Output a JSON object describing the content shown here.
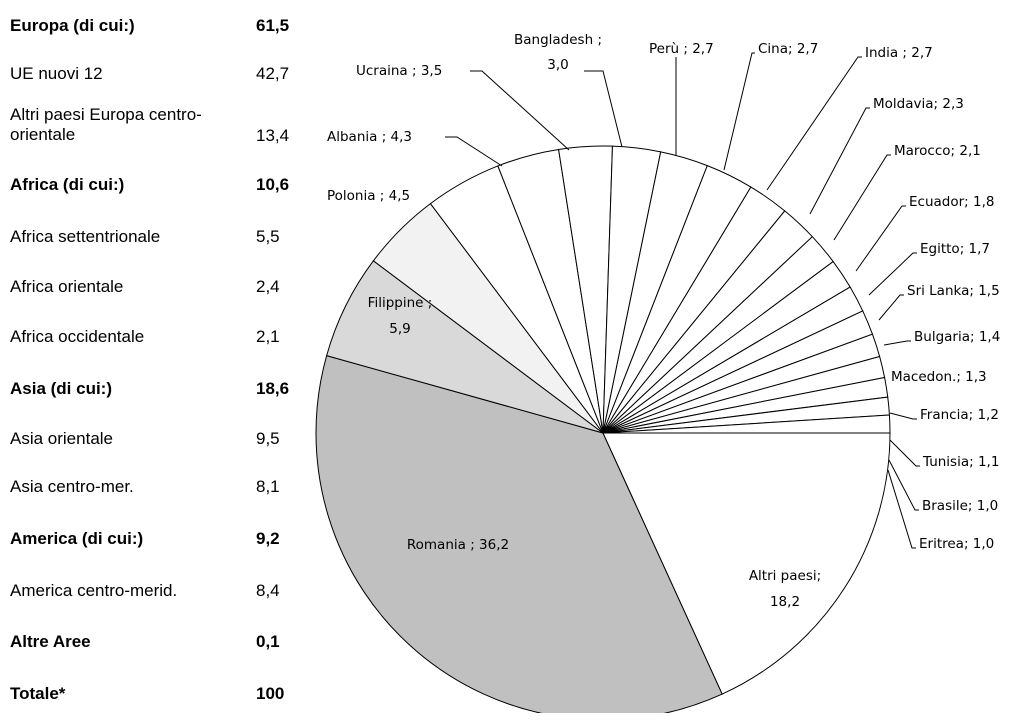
{
  "table": {
    "rows": [
      {
        "label": "Europa (di cui:)",
        "value": "61,5",
        "bold": true
      },
      {
        "label": "UE nuovi 12",
        "value": "42,7",
        "bold": false
      },
      {
        "label": "Altri paesi Europa centro-orientale",
        "value": "13,4",
        "bold": false
      },
      {
        "label": "Africa (di cui:)",
        "value": "10,6",
        "bold": true
      },
      {
        "label": "Africa settentrionale",
        "value": "5,5",
        "bold": false
      },
      {
        "label": "Africa orientale",
        "value": "2,4",
        "bold": false
      },
      {
        "label": "Africa occidentale",
        "value": "2,1",
        "bold": false
      },
      {
        "label": "Asia (di cui:)",
        "value": "18,6",
        "bold": true
      },
      {
        "label": "Asia orientale",
        "value": "9,5",
        "bold": false
      },
      {
        "label": "Asia centro-mer.",
        "value": "8,1",
        "bold": false
      },
      {
        "label": "America (di cui:)",
        "value": "9,2",
        "bold": true
      },
      {
        "label": "America centro-merid.",
        "value": "8,4",
        "bold": false
      },
      {
        "label": "Altre Aree",
        "value": "0,1",
        "bold": true
      },
      {
        "label": "Totale*",
        "value": "100",
        "bold": true
      }
    ]
  },
  "chart_data": {
    "type": "pie",
    "title": "",
    "slices": [
      {
        "name": "Romania",
        "value": 36.2,
        "label": "Romania ; 36,2",
        "color": "#c0c0c0"
      },
      {
        "name": "Filippine",
        "value": 5.9,
        "label": "Filippine ; 5,9",
        "color": "#d9d9d9"
      },
      {
        "name": "Polonia",
        "value": 4.5,
        "label": "Polonia ; 4,5",
        "color": "#f2f2f2"
      },
      {
        "name": "Albania",
        "value": 4.3,
        "label": "Albania ; 4,3",
        "color": "#ffffff"
      },
      {
        "name": "Ucraina",
        "value": 3.5,
        "label": "Ucraina ; 3,5",
        "color": "#ffffff"
      },
      {
        "name": "Bangladesh",
        "value": 3.0,
        "label": "Bangladesh ; 3,0",
        "color": "#ffffff"
      },
      {
        "name": "Perù",
        "value": 2.7,
        "label": "Perù ; 2,7",
        "color": "#ffffff"
      },
      {
        "name": "Cina",
        "value": 2.7,
        "label": "Cina; 2,7",
        "color": "#ffffff"
      },
      {
        "name": "India",
        "value": 2.7,
        "label": "India ; 2,7",
        "color": "#ffffff"
      },
      {
        "name": "Moldavia",
        "value": 2.3,
        "label": "Moldavia; 2,3",
        "color": "#ffffff"
      },
      {
        "name": "Marocco",
        "value": 2.1,
        "label": "Marocco; 2,1",
        "color": "#ffffff"
      },
      {
        "name": "Ecuador",
        "value": 1.8,
        "label": "Ecuador; 1,8",
        "color": "#ffffff"
      },
      {
        "name": "Egitto",
        "value": 1.7,
        "label": "Egitto; 1,7",
        "color": "#ffffff"
      },
      {
        "name": "Sri Lanka",
        "value": 1.5,
        "label": "Sri Lanka; 1,5",
        "color": "#ffffff"
      },
      {
        "name": "Bulgaria",
        "value": 1.4,
        "label": "Bulgaria; 1,4",
        "color": "#ffffff"
      },
      {
        "name": "Macedon.",
        "value": 1.3,
        "label": "Macedon.; 1,3",
        "color": "#ffffff"
      },
      {
        "name": "Francia",
        "value": 1.2,
        "label": "Francia; 1,2",
        "color": "#ffffff"
      },
      {
        "name": "Tunisia",
        "value": 1.1,
        "label": "Tunisia; 1,1",
        "color": "#ffffff"
      },
      {
        "name": "Brasile",
        "value": 1.0,
        "label": "Brasile; 1,0",
        "color": "#ffffff"
      },
      {
        "name": "Eritrea",
        "value": 1.0,
        "label": "Eritrea; 1,0",
        "color": "#ffffff"
      },
      {
        "name": "Altri paesi",
        "value": 18.2,
        "label": "Altri paesi; 18,2",
        "color": "#ffffff"
      }
    ],
    "legend": "none",
    "start": "Altri paesi slice ends at the 3 o'clock axis, slices run counter-clockwise from Eritrea",
    "stroke_color": "#000000"
  }
}
